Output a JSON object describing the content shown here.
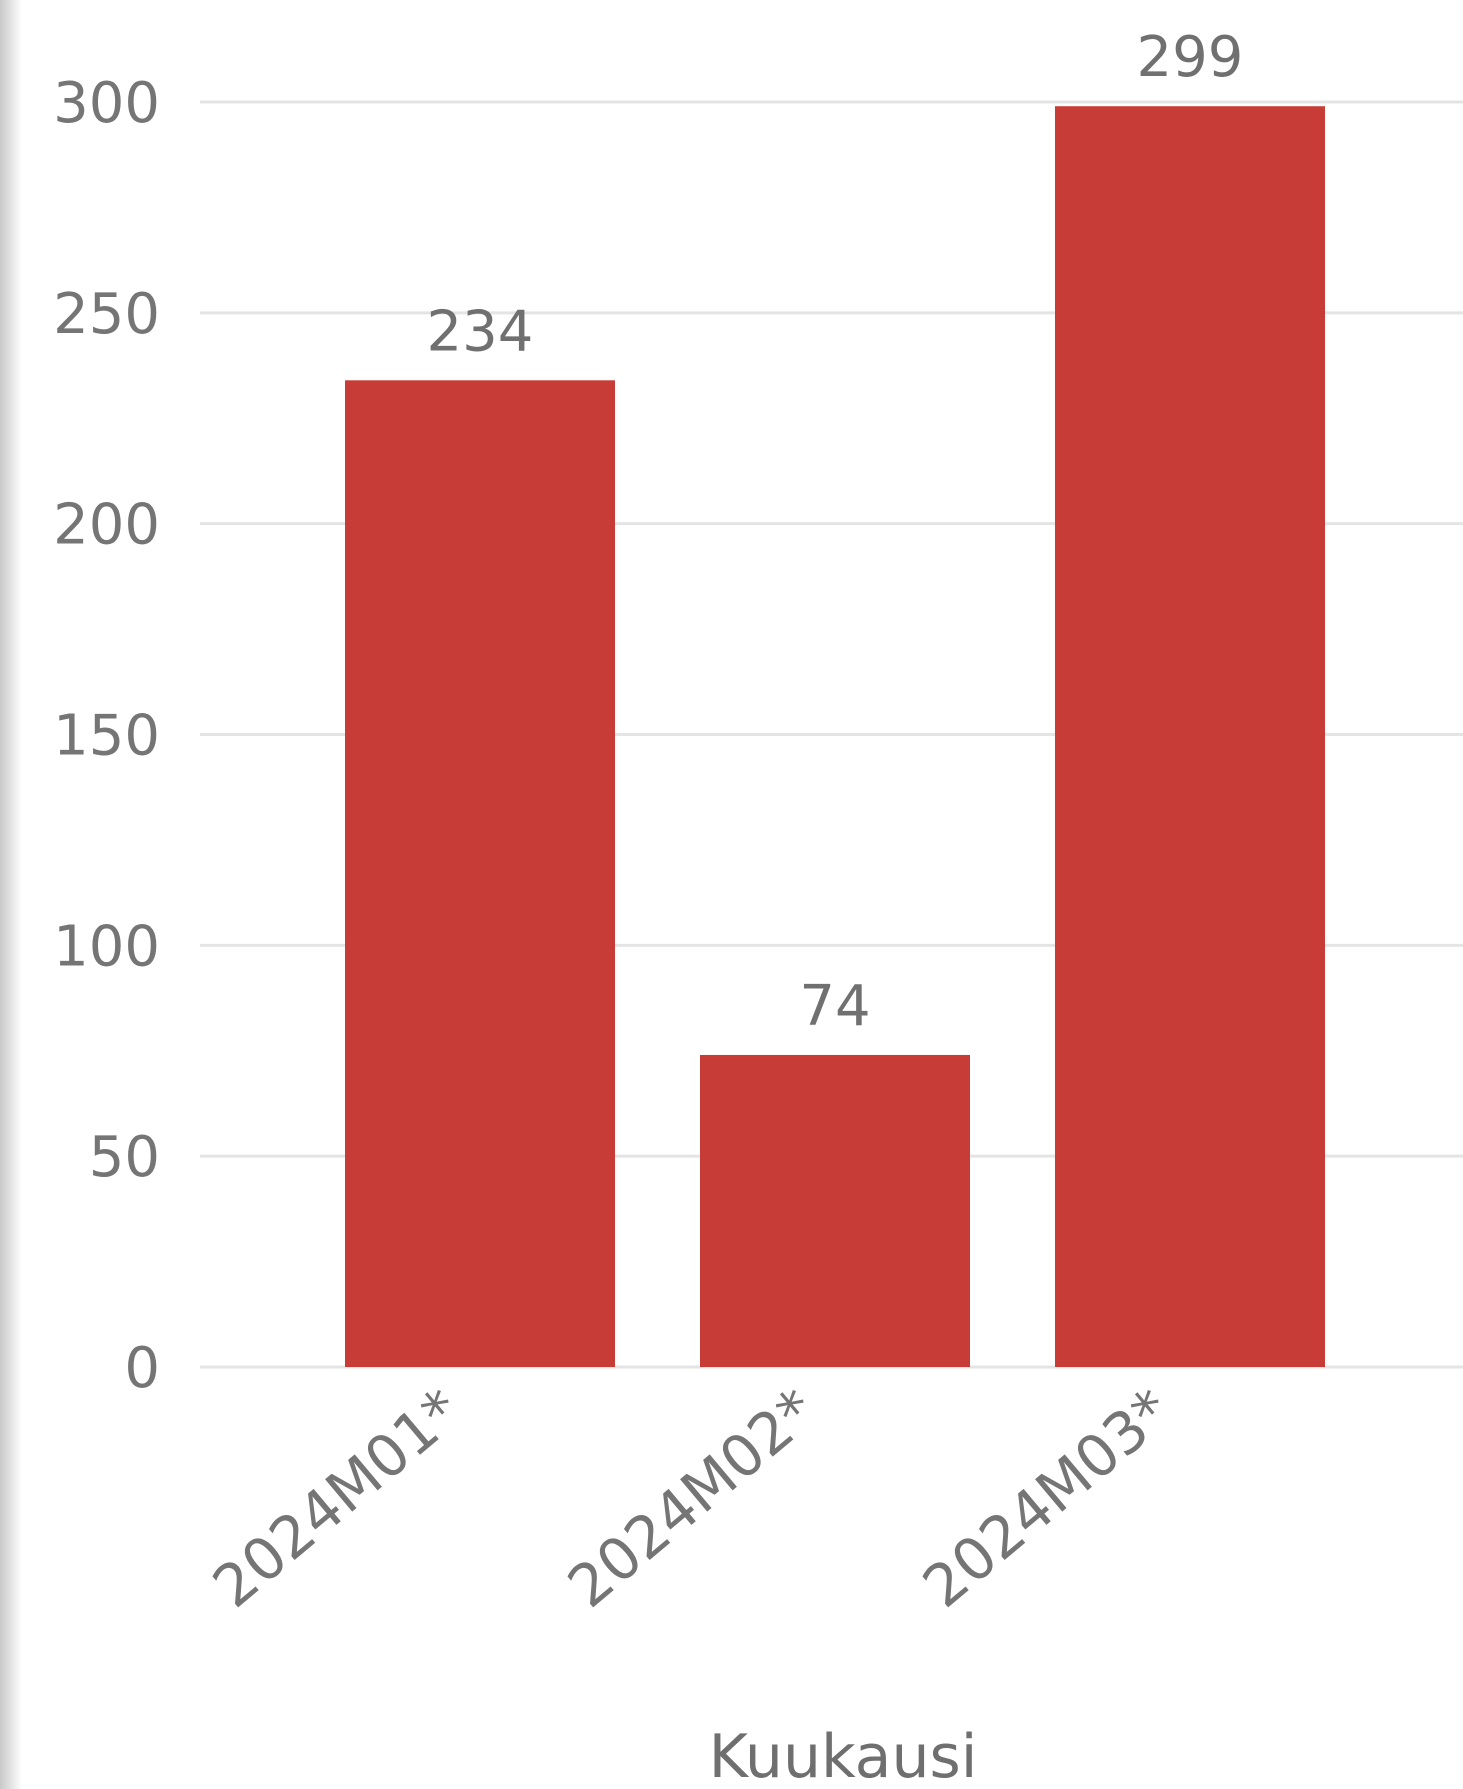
{
  "chart_data": {
    "type": "bar",
    "categories": [
      "2024M01*",
      "2024M02*",
      "2024M03*"
    ],
    "values": [
      234,
      74,
      299
    ],
    "data_labels": [
      "234",
      "74",
      "299"
    ],
    "title": "",
    "xlabel": "Kuukausi",
    "ylabel": "",
    "ylim": [
      0,
      300
    ],
    "yticks": [
      0,
      50,
      100,
      150,
      200,
      250,
      300
    ],
    "ytick_labels": [
      "0",
      "50",
      "100",
      "150",
      "200",
      "250",
      "300"
    ],
    "grid": true,
    "legend": "none",
    "bar_color": "#c83c38"
  }
}
